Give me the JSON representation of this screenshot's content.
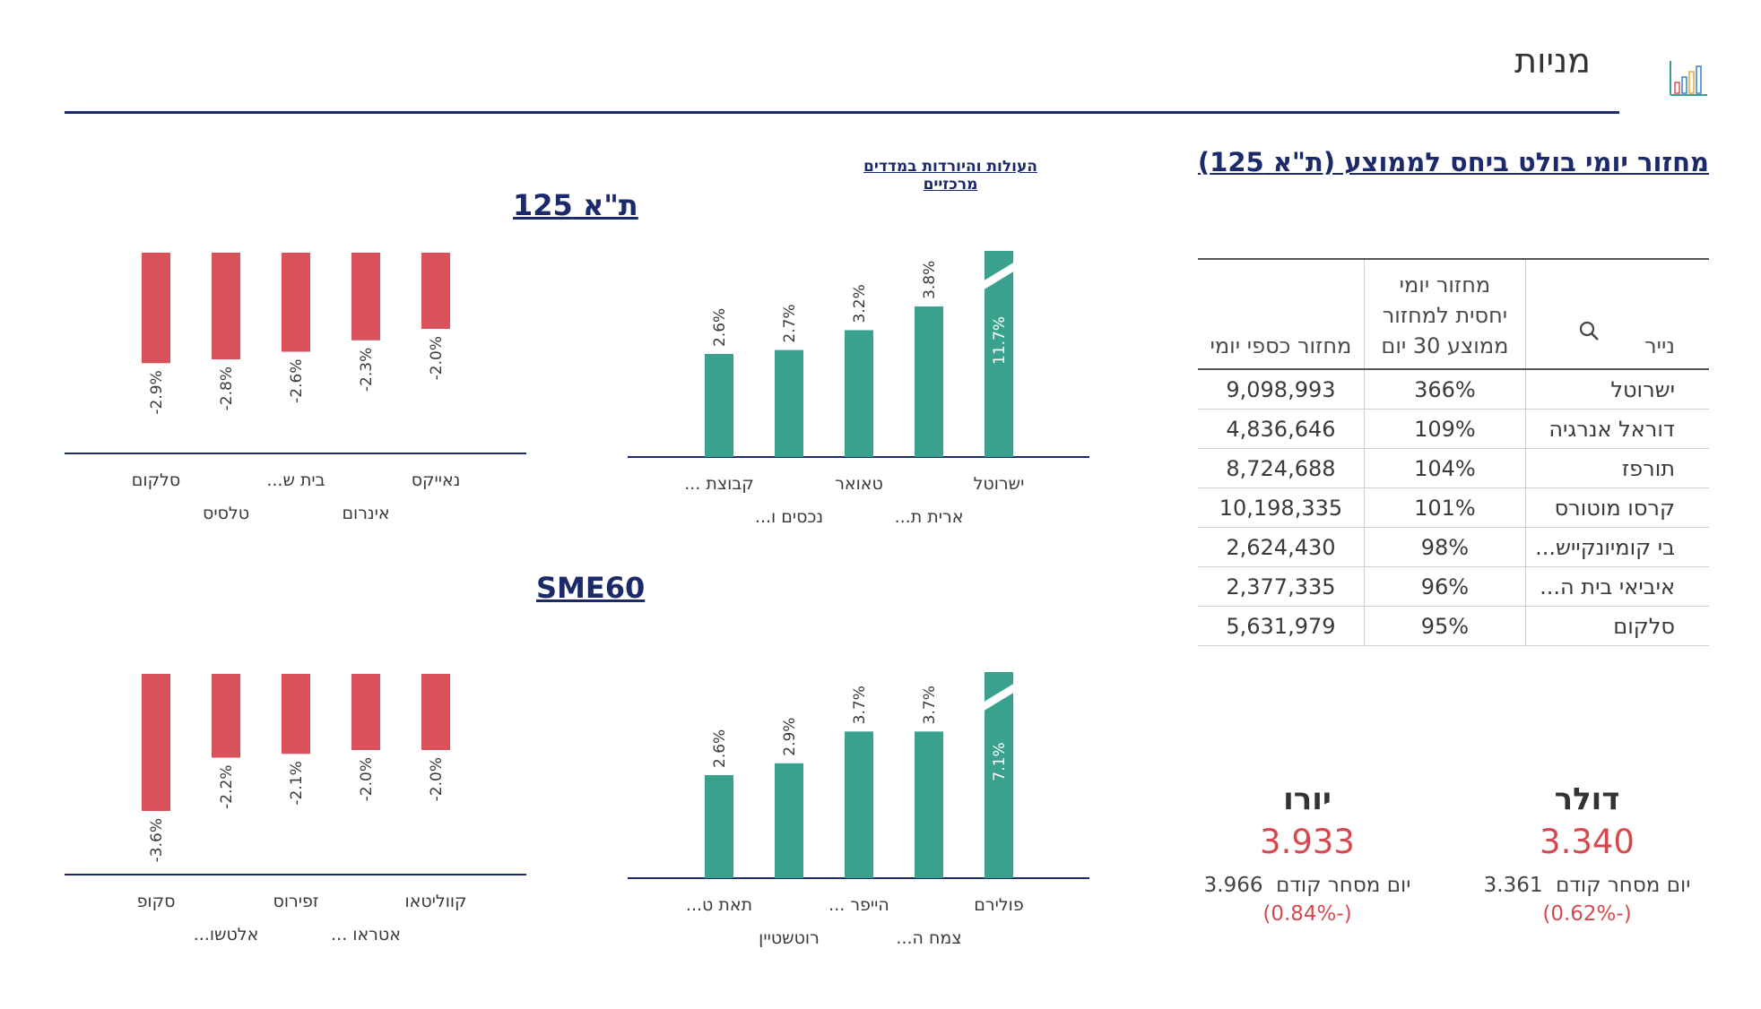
{
  "header": {
    "title": "מניות",
    "icon": "bar-chart-icon"
  },
  "turnover": {
    "title": "מחזור יומי בולט ביחס לממוצע (ת\"א 125)",
    "columns": {
      "name": "נייר",
      "ratio": "מחזור יומי יחסית למחזור ממוצע 30 יום",
      "amount": "מחזור כספי יומי"
    },
    "rows": [
      {
        "name": "ישרוטל",
        "ratio": "366%",
        "amount": "9,098,993"
      },
      {
        "name": "דוראל אנרגיה",
        "ratio": "109%",
        "amount": "4,836,646"
      },
      {
        "name": "תורפז",
        "ratio": "104%",
        "amount": "8,724,688"
      },
      {
        "name": "קרסו מוטורס",
        "ratio": "101%",
        "amount": "10,198,335"
      },
      {
        "name": "בי קומיונקייש...",
        "ratio": "98%",
        "amount": "2,624,430"
      },
      {
        "name": "איביאי בית ה...",
        "ratio": "96%",
        "amount": "2,377,335"
      },
      {
        "name": "סלקום",
        "ratio": "95%",
        "amount": "5,631,979"
      }
    ]
  },
  "movers_link": "העולות והיורדות במדדים מרכזיים",
  "indices": [
    {
      "title": "ת\"א 125"
    },
    {
      "title": "SME60"
    }
  ],
  "fx": [
    {
      "name": "דולר",
      "rate": "3.340",
      "prev_label": "יום מסחר קודם",
      "prev_value": "3.361",
      "change": "(-0.62%)"
    },
    {
      "name": "יורו",
      "rate": "3.933",
      "prev_label": "יום מסחר קודם",
      "prev_value": "3.966",
      "change": "(-0.84%)"
    }
  ],
  "colors": {
    "up": "#3aa18f",
    "down": "#d9525b",
    "navy": "#1c2a6b",
    "rate": "#d44a50"
  },
  "chart_data": [
    {
      "type": "bar",
      "title": "ת\"א 125 - עולות",
      "categories": [
        "ישרוטל",
        "ארית ת...",
        "טאואר",
        "נכסים ו...",
        "קבוצת ..."
      ],
      "values": [
        11.7,
        3.8,
        3.2,
        2.7,
        2.6
      ],
      "labels": [
        "11.7%",
        "3.8%",
        "3.2%",
        "2.7%",
        "2.6%"
      ],
      "axis_max": 5.2,
      "clipped": [
        true,
        false,
        false,
        false,
        false
      ]
    },
    {
      "type": "bar",
      "title": "ת\"א 125 - יורדות",
      "categories": [
        "נאייקס",
        "אינרום",
        "בית ש...",
        "טלסיס",
        "סלקום"
      ],
      "values": [
        -2.0,
        -2.3,
        -2.6,
        -2.8,
        -2.9
      ],
      "labels": [
        "-2.0%",
        "-2.3%",
        "-2.6%",
        "-2.8%",
        "-2.9%"
      ],
      "axis_max": 4.0
    },
    {
      "type": "bar",
      "title": "SME60 - עולות",
      "categories": [
        "פולירם",
        "צמח ה...",
        "הייפר ...",
        "רוטשטיין",
        "תאת ט..."
      ],
      "values": [
        7.1,
        3.7,
        3.7,
        2.9,
        2.6
      ],
      "labels": [
        "7.1%",
        "3.7%",
        "3.7%",
        "2.9%",
        "2.6%"
      ],
      "axis_max": 5.2,
      "clipped": [
        true,
        false,
        false,
        false,
        false
      ]
    },
    {
      "type": "bar",
      "title": "SME60 - יורדות",
      "categories": [
        "קווליטאו",
        "אטראו ...",
        "זפירוס",
        "אלטשו...",
        "סקופ"
      ],
      "values": [
        -2.0,
        -2.0,
        -2.1,
        -2.2,
        -3.6
      ],
      "labels": [
        "-2.0%",
        "-2.0%",
        "-2.1%",
        "-2.2%",
        "-3.6%"
      ],
      "axis_max": 4.0
    }
  ]
}
